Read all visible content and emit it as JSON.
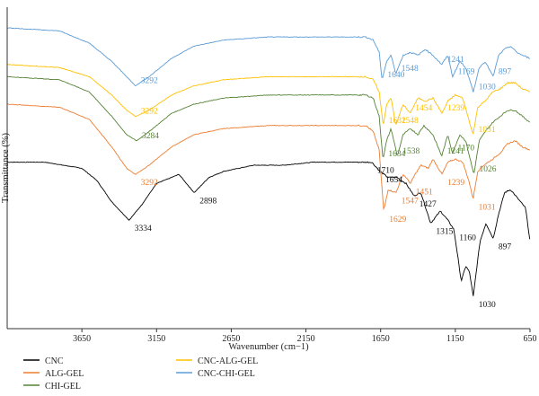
{
  "chart_data": {
    "type": "line",
    "title": "",
    "xlabel": "Wavenumber (cm−1)",
    "ylabel": "Transmittance (%)",
    "x_reversed": true,
    "xlim": [
      4150,
      650
    ],
    "y_units": "arbitrary, offset traces",
    "ylim": [
      0,
      100
    ],
    "x_ticks": [
      "3650",
      "3150",
      "2650",
      "2150",
      "1650",
      "1150",
      "650"
    ],
    "x_tick_values": [
      3650,
      3150,
      2650,
      2150,
      1650,
      1150,
      650
    ],
    "grid": false,
    "legend_position": "bottom-left",
    "series": [
      {
        "name": "CNC",
        "color": "#000000",
        "points": [
          [
            4150,
            51
          ],
          [
            3900,
            51
          ],
          [
            3650,
            49
          ],
          [
            3550,
            45
          ],
          [
            3450,
            38
          ],
          [
            3334,
            32
          ],
          [
            3250,
            37
          ],
          [
            3150,
            44
          ],
          [
            3000,
            47
          ],
          [
            2898,
            41
          ],
          [
            2800,
            46
          ],
          [
            2700,
            48
          ],
          [
            2500,
            50
          ],
          [
            2300,
            50
          ],
          [
            2100,
            51
          ],
          [
            1900,
            51
          ],
          [
            1750,
            51
          ],
          [
            1710,
            51
          ],
          [
            1654,
            48
          ],
          [
            1600,
            46
          ],
          [
            1540,
            46
          ],
          [
            1480,
            44
          ],
          [
            1427,
            40
          ],
          [
            1380,
            41
          ],
          [
            1315,
            31
          ],
          [
            1250,
            35
          ],
          [
            1200,
            32
          ],
          [
            1160,
            29
          ],
          [
            1110,
            12
          ],
          [
            1080,
            17
          ],
          [
            1055,
            15
          ],
          [
            1030,
            7
          ],
          [
            985,
            25
          ],
          [
            945,
            31
          ],
          [
            897,
            26
          ],
          [
            860,
            34
          ],
          [
            820,
            41
          ],
          [
            780,
            42
          ],
          [
            730,
            39
          ],
          [
            680,
            36
          ],
          [
            650,
            25
          ]
        ],
        "peaks": [
          {
            "x": 3334,
            "label": "3334"
          },
          {
            "x": 2898,
            "label": "2898"
          },
          {
            "x": 1710,
            "label": "1710"
          },
          {
            "x": 1654,
            "label": "1654"
          },
          {
            "x": 1427,
            "label": "1427"
          },
          {
            "x": 1315,
            "label": "1315"
          },
          {
            "x": 1160,
            "label": "1160"
          },
          {
            "x": 1030,
            "label": "1030"
          },
          {
            "x": 897,
            "label": "897"
          }
        ]
      },
      {
        "name": "ALG-GEL",
        "color": "#ED7D31",
        "points": [
          [
            4150,
            70
          ],
          [
            3800,
            69
          ],
          [
            3600,
            65
          ],
          [
            3450,
            56
          ],
          [
            3350,
            49
          ],
          [
            3292,
            47
          ],
          [
            3200,
            50
          ],
          [
            3050,
            56
          ],
          [
            2900,
            60
          ],
          [
            2700,
            62
          ],
          [
            2400,
            63
          ],
          [
            2100,
            63
          ],
          [
            1900,
            63
          ],
          [
            1750,
            63
          ],
          [
            1700,
            61
          ],
          [
            1660,
            55
          ],
          [
            1629,
            35
          ],
          [
            1600,
            42
          ],
          [
            1547,
            41
          ],
          [
            1500,
            47
          ],
          [
            1480,
            46
          ],
          [
            1451,
            44
          ],
          [
            1420,
            47
          ],
          [
            1380,
            50
          ],
          [
            1330,
            49
          ],
          [
            1300,
            52
          ],
          [
            1239,
            47
          ],
          [
            1200,
            51
          ],
          [
            1150,
            52
          ],
          [
            1100,
            51
          ],
          [
            1060,
            45
          ],
          [
            1031,
            39
          ],
          [
            1000,
            48
          ],
          [
            960,
            50
          ],
          [
            900,
            52
          ],
          [
            850,
            54
          ],
          [
            800,
            57
          ],
          [
            750,
            58
          ],
          [
            700,
            56
          ],
          [
            650,
            55
          ]
        ],
        "peaks": [
          {
            "x": 3292,
            "label": "3292"
          },
          {
            "x": 1629,
            "label": "1629"
          },
          {
            "x": 1547,
            "label": "1547"
          },
          {
            "x": 1451,
            "label": "1451"
          },
          {
            "x": 1239,
            "label": "1239"
          },
          {
            "x": 1031,
            "label": "1031"
          }
        ]
      },
      {
        "name": "CHI-GEL",
        "color": "#548235",
        "points": [
          [
            4150,
            79
          ],
          [
            3800,
            78
          ],
          [
            3600,
            74
          ],
          [
            3450,
            66
          ],
          [
            3350,
            60
          ],
          [
            3284,
            58
          ],
          [
            3200,
            61
          ],
          [
            3050,
            67
          ],
          [
            2900,
            70
          ],
          [
            2700,
            72
          ],
          [
            2400,
            73
          ],
          [
            2100,
            73
          ],
          [
            1900,
            73
          ],
          [
            1750,
            73
          ],
          [
            1700,
            72
          ],
          [
            1660,
            66
          ],
          [
            1634,
            52
          ],
          [
            1610,
            58
          ],
          [
            1580,
            62
          ],
          [
            1538,
            53
          ],
          [
            1500,
            60
          ],
          [
            1450,
            62
          ],
          [
            1400,
            60
          ],
          [
            1360,
            63
          ],
          [
            1300,
            60
          ],
          [
            1241,
            53
          ],
          [
            1200,
            60
          ],
          [
            1170,
            54
          ],
          [
            1120,
            60
          ],
          [
            1080,
            58
          ],
          [
            1026,
            47
          ],
          [
            990,
            58
          ],
          [
            950,
            61
          ],
          [
            900,
            64
          ],
          [
            850,
            66
          ],
          [
            800,
            68
          ],
          [
            750,
            68
          ],
          [
            700,
            66
          ],
          [
            650,
            64
          ]
        ],
        "peaks": [
          {
            "x": 3284,
            "label": "3284"
          },
          {
            "x": 1634,
            "label": "1634"
          },
          {
            "x": 1538,
            "label": "1538"
          },
          {
            "x": 1241,
            "label": "1241"
          },
          {
            "x": 1170,
            "label": "1170"
          },
          {
            "x": 1026,
            "label": "1026"
          }
        ]
      },
      {
        "name": "CNC-ALG-GEL",
        "color": "#FFC000",
        "points": [
          [
            4150,
            83
          ],
          [
            3800,
            82
          ],
          [
            3600,
            79
          ],
          [
            3450,
            73
          ],
          [
            3350,
            68
          ],
          [
            3292,
            66
          ],
          [
            3200,
            68
          ],
          [
            3050,
            73
          ],
          [
            2900,
            76
          ],
          [
            2700,
            78
          ],
          [
            2400,
            79
          ],
          [
            2100,
            79
          ],
          [
            1900,
            79
          ],
          [
            1750,
            79
          ],
          [
            1700,
            78
          ],
          [
            1660,
            74
          ],
          [
            1632,
            63
          ],
          [
            1610,
            70
          ],
          [
            1580,
            72
          ],
          [
            1548,
            63
          ],
          [
            1500,
            70
          ],
          [
            1454,
            67
          ],
          [
            1400,
            72
          ],
          [
            1350,
            71
          ],
          [
            1300,
            72
          ],
          [
            1239,
            67
          ],
          [
            1200,
            71
          ],
          [
            1150,
            73
          ],
          [
            1100,
            72
          ],
          [
            1031,
            60
          ],
          [
            1000,
            69
          ],
          [
            950,
            71
          ],
          [
            900,
            74
          ],
          [
            850,
            75
          ],
          [
            800,
            77
          ],
          [
            750,
            77
          ],
          [
            700,
            75
          ],
          [
            650,
            74
          ]
        ],
        "peaks": [
          {
            "x": 3292,
            "label": "3292"
          },
          {
            "x": 1632,
            "label": "1632"
          },
          {
            "x": 1548,
            "label": "1548"
          },
          {
            "x": 1454,
            "label": "1454"
          },
          {
            "x": 1239,
            "label": "1239"
          },
          {
            "x": 1031,
            "label": "1031"
          }
        ]
      },
      {
        "name": "CNC-CHI-GEL",
        "color": "#5B9BD5",
        "points": [
          [
            4150,
            95
          ],
          [
            3800,
            94
          ],
          [
            3600,
            90
          ],
          [
            3450,
            84
          ],
          [
            3350,
            79
          ],
          [
            3292,
            76
          ],
          [
            3200,
            79
          ],
          [
            3050,
            85
          ],
          [
            2900,
            89
          ],
          [
            2700,
            91
          ],
          [
            2400,
            92
          ],
          [
            2100,
            92
          ],
          [
            1900,
            92
          ],
          [
            1750,
            92
          ],
          [
            1700,
            91
          ],
          [
            1660,
            87
          ],
          [
            1640,
            78
          ],
          [
            1610,
            84
          ],
          [
            1580,
            86
          ],
          [
            1548,
            80
          ],
          [
            1500,
            86
          ],
          [
            1450,
            87
          ],
          [
            1400,
            86
          ],
          [
            1350,
            88
          ],
          [
            1300,
            86
          ],
          [
            1241,
            83
          ],
          [
            1200,
            86
          ],
          [
            1169,
            79
          ],
          [
            1120,
            84
          ],
          [
            1080,
            82
          ],
          [
            1030,
            74
          ],
          [
            990,
            82
          ],
          [
            950,
            84
          ],
          [
            897,
            79
          ],
          [
            860,
            86
          ],
          [
            820,
            88
          ],
          [
            780,
            89
          ],
          [
            740,
            87
          ],
          [
            700,
            86
          ],
          [
            650,
            85
          ]
        ],
        "peaks": [
          {
            "x": 3292,
            "label": "3292"
          },
          {
            "x": 1640,
            "label": "1640"
          },
          {
            "x": 1548,
            "label": "1548"
          },
          {
            "x": 1241,
            "label": "1241"
          },
          {
            "x": 1169,
            "label": "1169"
          },
          {
            "x": 1030,
            "label": "1030"
          },
          {
            "x": 897,
            "label": "897"
          }
        ]
      }
    ]
  }
}
